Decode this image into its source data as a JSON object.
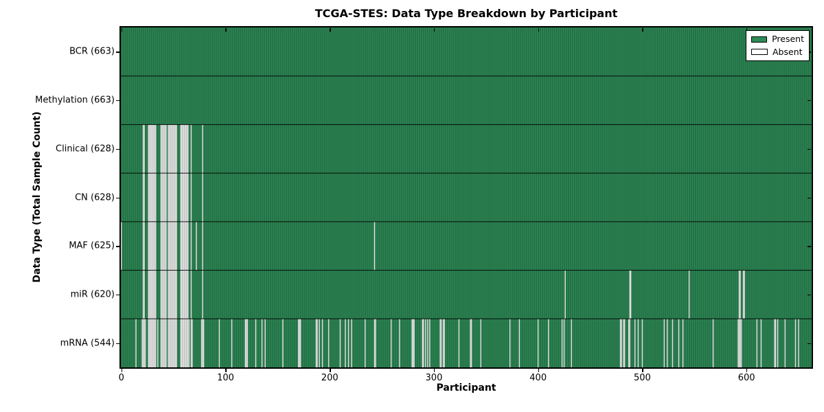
{
  "figure": {
    "title": "TCGA-STES: Data Type Breakdown by Participant"
  },
  "chart_data": {
    "type": "heatmap",
    "title": "TCGA-STES: Data Type Breakdown by Participant",
    "xlabel": "Participant",
    "ylabel": "Data Type (Total Sample Count)",
    "n_participants": 663,
    "xlim": [
      -0.5,
      662.5
    ],
    "xticks": [
      0,
      100,
      200,
      300,
      400,
      500,
      600
    ],
    "grid": false,
    "legend": {
      "position": "upper right",
      "entries": [
        {
          "label": "Present",
          "color": "#2e8b57"
        },
        {
          "label": "Absent",
          "color": "#ffffff"
        }
      ]
    },
    "colors": {
      "present": "#2e8b57",
      "absent": "#ffffff",
      "edge": "#000000"
    },
    "rows": [
      {
        "name": "BCR",
        "label": "BCR (663)",
        "present_count": 663,
        "absent": []
      },
      {
        "name": "Methylation",
        "label": "Methylation (663)",
        "present_count": 663,
        "absent": []
      },
      {
        "name": "Clinical",
        "label": "Clinical (628)",
        "present_count": 628,
        "absent": [
          21,
          22,
          26,
          27,
          28,
          29,
          30,
          31,
          32,
          33,
          38,
          39,
          40,
          41,
          42,
          43,
          45,
          46,
          47,
          48,
          49,
          50,
          51,
          52,
          53,
          57,
          58,
          59,
          60,
          61,
          62,
          63,
          64,
          67,
          78
        ]
      },
      {
        "name": "CN",
        "label": "CN (628)",
        "present_count": 628,
        "absent": [
          21,
          22,
          26,
          27,
          28,
          29,
          30,
          31,
          32,
          33,
          38,
          39,
          40,
          41,
          42,
          43,
          45,
          46,
          47,
          48,
          49,
          50,
          51,
          52,
          53,
          57,
          58,
          59,
          60,
          61,
          62,
          63,
          64,
          67,
          78
        ]
      },
      {
        "name": "MAF",
        "label": "MAF (625)",
        "present_count": 625,
        "absent": [
          0,
          21,
          22,
          26,
          27,
          28,
          29,
          30,
          31,
          32,
          33,
          38,
          39,
          40,
          41,
          42,
          43,
          45,
          46,
          47,
          48,
          49,
          50,
          51,
          52,
          53,
          57,
          58,
          59,
          60,
          61,
          62,
          63,
          64,
          67,
          72,
          78,
          243
        ]
      },
      {
        "name": "miR",
        "label": "miR (620)",
        "present_count": 620,
        "absent": [
          21,
          22,
          26,
          27,
          28,
          29,
          30,
          31,
          32,
          33,
          38,
          39,
          40,
          41,
          42,
          43,
          45,
          46,
          47,
          48,
          49,
          50,
          51,
          52,
          53,
          57,
          58,
          59,
          60,
          61,
          62,
          63,
          64,
          67,
          78,
          426,
          488,
          489,
          545,
          593,
          594,
          597,
          598
        ]
      },
      {
        "name": "mRNA",
        "label": "mRNA (544)",
        "present_count": 544,
        "absent": [
          14,
          20,
          21,
          22,
          23,
          26,
          27,
          28,
          29,
          30,
          31,
          32,
          33,
          35,
          38,
          39,
          40,
          41,
          42,
          43,
          45,
          46,
          47,
          48,
          49,
          50,
          51,
          52,
          53,
          57,
          58,
          59,
          60,
          61,
          62,
          63,
          64,
          65,
          67,
          68,
          77,
          78,
          79,
          94,
          106,
          119,
          120,
          121,
          129,
          135,
          138,
          155,
          170,
          171,
          172,
          187,
          188,
          190,
          193,
          199,
          210,
          215,
          218,
          221,
          234,
          243,
          244,
          259,
          267,
          279,
          280,
          281,
          289,
          290,
          292,
          294,
          296,
          306,
          307,
          309,
          310,
          324,
          335,
          336,
          345,
          373,
          382,
          400,
          410,
          423,
          425,
          432,
          479,
          480,
          482,
          483,
          487,
          488,
          493,
          496,
          500,
          521,
          524,
          529,
          535,
          539,
          568,
          592,
          593,
          594,
          595,
          610,
          614,
          627,
          628,
          630,
          637,
          647,
          650
        ]
      }
    ]
  }
}
